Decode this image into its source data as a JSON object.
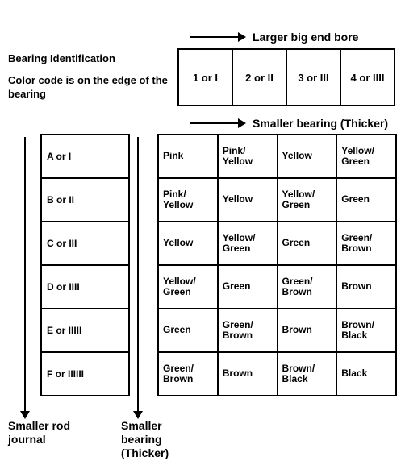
{
  "title_line1": "Bearing Identification",
  "title_line2": "Color code is on the edge of the bearing",
  "arrow_top_label": "Larger big end bore",
  "arrow_mid_label": "Smaller bearing (Thicker)",
  "arrow_left_label": "Smaller rod journal",
  "arrow_right_label": "Smaller bearing (Thicker)",
  "bore_headers": [
    "1 or I",
    "2 or II",
    "3 or III",
    "4 or IIII"
  ],
  "row_headers": [
    "A or I",
    "B or II",
    "C or III",
    "D or IIII",
    "E or IIIII",
    "F or IIIIII"
  ],
  "color_grid": [
    [
      "Pink",
      "Pink/\nYellow",
      "Yellow",
      "Yellow/\nGreen"
    ],
    [
      "Pink/\nYellow",
      "Yellow",
      "Yellow/\nGreen",
      "Green"
    ],
    [
      "Yellow",
      "Yellow/\nGreen",
      "Green",
      "Green/\nBrown"
    ],
    [
      "Yellow/\nGreen",
      "Green",
      "Green/\nBrown",
      "Brown"
    ],
    [
      "Green",
      "Green/\nBrown",
      "Brown",
      "Brown/\nBlack"
    ],
    [
      "Green/\nBrown",
      "Brown",
      "Brown/\nBlack",
      "Black"
    ]
  ]
}
